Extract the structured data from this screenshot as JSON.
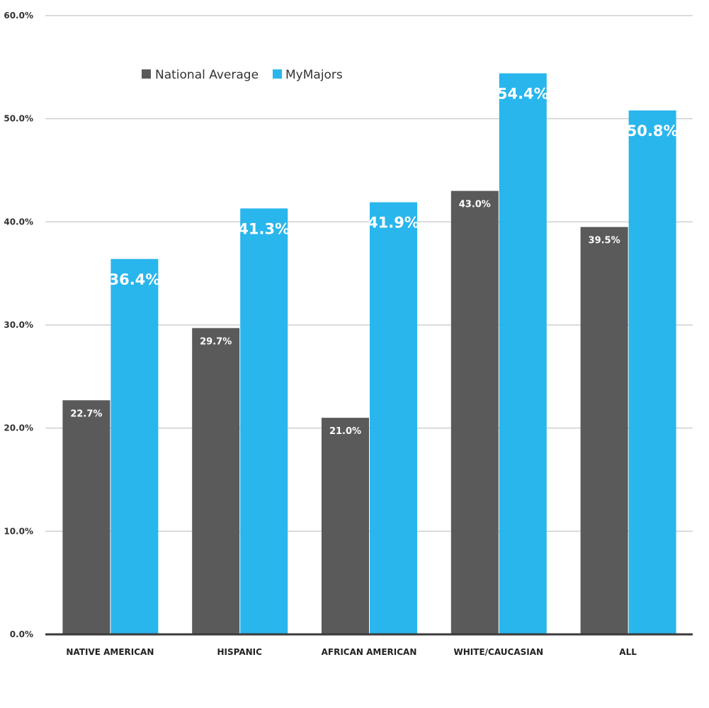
{
  "colors": {
    "national_average": "#5a5a5a",
    "mymajors": "#29b6ec",
    "grid": "#cfcfcf",
    "axis": "#3a3a3a"
  },
  "chart_data": {
    "type": "bar",
    "categories": [
      "NATIVE AMERICAN",
      "HISPANIC",
      "AFRICAN AMERICAN",
      "WHITE/CAUCASIAN",
      "ALL"
    ],
    "series": [
      {
        "name": "National Average",
        "values": [
          22.7,
          29.7,
          21.0,
          43.0,
          39.5
        ],
        "labels": [
          "22.7%",
          "29.7%",
          "21.0%",
          "43.0%",
          "39.5%"
        ]
      },
      {
        "name": "MyMajors",
        "values": [
          36.4,
          41.3,
          41.9,
          54.4,
          50.8
        ],
        "labels": [
          "36.4%",
          "41.3%",
          "41.9%",
          "54.4%",
          "50.8%"
        ]
      }
    ],
    "ylim": [
      0,
      60
    ],
    "yticks": [
      0,
      10,
      20,
      30,
      40,
      50,
      60
    ],
    "ytick_labels": [
      "0.0%",
      "10.0%",
      "20.0%",
      "30.0%",
      "40.0%",
      "50.0%",
      "60.0%"
    ],
    "grid": true,
    "legend_position": "top-left",
    "title": "",
    "xlabel": "",
    "ylabel": ""
  }
}
